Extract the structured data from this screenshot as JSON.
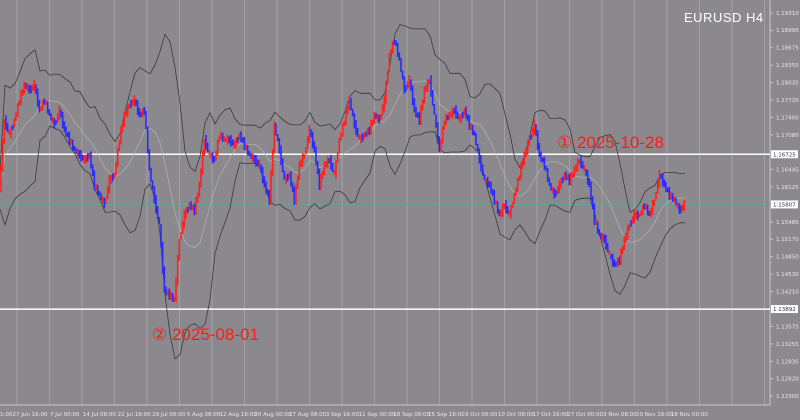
{
  "window": {
    "symbol_timeframe": "EURUSD  H4"
  },
  "annotations": [
    {
      "label": "① 2025-10-28",
      "price": 1.16725
    },
    {
      "label": "② 2025-08-01",
      "price": 1.13892
    }
  ],
  "colors": {
    "background": "#8b898d",
    "bull_candle": "#ff2020",
    "bear_candle": "#2a2aff",
    "bands": "#3a3a3a",
    "level_line": "#ffffff",
    "current_price_line": "#4fb39a",
    "annotation_text": "#ff1a1a"
  },
  "chart_data": {
    "type": "candlestick",
    "title": "EURUSD  H4",
    "indicators": [
      "Bollinger Bands"
    ],
    "grid": true,
    "ylim": [
      1.1215,
      1.1945
    ],
    "y_ticks": [
      "1.19310",
      "1.18995",
      "1.18675",
      "1.18355",
      "1.18035",
      "1.17720",
      "1.17400",
      "1.17080",
      "1.16445",
      "1.16125",
      "1.15485",
      "1.15170",
      "1.14850",
      "1.14530",
      "1.14210",
      "1.13575",
      "1.13255",
      "1.12935",
      "1.12620",
      "1.12300"
    ],
    "y_tick_values": [
      1.1931,
      1.18995,
      1.18675,
      1.18355,
      1.18035,
      1.1772,
      1.174,
      1.1708,
      1.16445,
      1.16125,
      1.15485,
      1.1517,
      1.1485,
      1.1453,
      1.1421,
      1.13575,
      1.13255,
      1.12935,
      1.1262,
      1.123
    ],
    "x_ticks": [
      "1:00",
      "27 Jun 16:00",
      "7 Jul 00:00",
      "14 Jul 08:00",
      "22 Jul 16:00",
      "29 Jul 00:00",
      "5 Aug 08:00",
      "12 Aug 16:00",
      "20 Aug 00:00",
      "27 Aug 08:00",
      "3 Sep 16:00",
      "11 Sep 00:00",
      "18 Sep 08:00",
      "25 Sep 16:00",
      "3 Oct 00:00",
      "10 Oct 08:00",
      "17 Oct 16:00",
      "27 Oct 00:00",
      "3 Nov 08:00",
      "10 Nov 16:00",
      "18 Nov 00:00"
    ],
    "price_labels": [
      {
        "label": "1.16725",
        "value": 1.16725
      },
      {
        "label": "1.15807",
        "value": 1.15807
      },
      {
        "label": "1.13892",
        "value": 1.13892
      }
    ],
    "horizontal_levels": [
      1.16725,
      1.13892
    ],
    "current_price": 1.15807,
    "close": [
      1.1607,
      1.1735,
      1.1708,
      1.1735,
      1.1772,
      1.1799,
      1.179,
      1.1799,
      1.1753,
      1.1772,
      1.1744,
      1.1726,
      1.1753,
      1.1717,
      1.1699,
      1.168,
      1.1671,
      1.1662,
      1.1671,
      1.1616,
      1.1598,
      1.158,
      1.1625,
      1.1635,
      1.1699,
      1.1744,
      1.1763,
      1.1772,
      1.1744,
      1.1753,
      1.1644,
      1.1589,
      1.1543,
      1.1424,
      1.1415,
      1.1406,
      1.1516,
      1.1561,
      1.158,
      1.157,
      1.1616,
      1.1699,
      1.1671,
      1.1662,
      1.1708,
      1.1699,
      1.1699,
      1.1689,
      1.1708,
      1.1689,
      1.1671,
      1.1662,
      1.1653,
      1.1616,
      1.1589,
      1.1726,
      1.168,
      1.1625,
      1.1635,
      1.1589,
      1.1653,
      1.1671,
      1.1717,
      1.168,
      1.1616,
      1.1653,
      1.1662,
      1.1635,
      1.1699,
      1.1735,
      1.1772,
      1.1726,
      1.1699,
      1.1708,
      1.1717,
      1.1744,
      1.1735,
      1.1772,
      1.1854,
      1.1882,
      1.1845,
      1.179,
      1.1808,
      1.1753,
      1.1735,
      1.179,
      1.1808,
      1.1744,
      1.168,
      1.1735,
      1.1744,
      1.1753,
      1.1735,
      1.1753,
      1.1726,
      1.1708,
      1.1662,
      1.1625,
      1.1616,
      1.1589,
      1.1561,
      1.158,
      1.1561,
      1.1598,
      1.1635,
      1.1671,
      1.1699,
      1.1726,
      1.1671,
      1.1653,
      1.1616,
      1.1598,
      1.1616,
      1.1635,
      1.1625,
      1.1644,
      1.1662,
      1.1644,
      1.1616,
      1.1552,
      1.1525,
      1.1516,
      1.1488,
      1.147,
      1.1479,
      1.1516,
      1.1543,
      1.1561,
      1.1561,
      1.158,
      1.1561,
      1.1589,
      1.1635,
      1.1616,
      1.1598,
      1.1589,
      1.157,
      1.158
    ]
  }
}
